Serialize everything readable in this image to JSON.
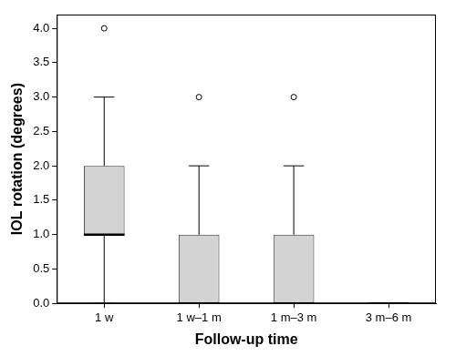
{
  "chart_data": {
    "type": "boxplot",
    "x_label": "Follow-up time",
    "y_label": "IOL rotation (degrees)",
    "categories": [
      "1 w",
      "1 w–1 m",
      "1 m–3 m",
      "3 m–6 m"
    ],
    "boxes": [
      {
        "min": 0,
        "q1": 1,
        "median": 1,
        "q3": 2,
        "max": 3,
        "outliers": [
          4
        ]
      },
      {
        "min": 0,
        "q1": 0,
        "median": 0,
        "q3": 1,
        "max": 2,
        "outliers": [
          3
        ]
      },
      {
        "min": 0,
        "q1": 0,
        "median": 0,
        "q3": 1,
        "max": 2,
        "outliers": [
          3
        ]
      },
      {
        "min": 0,
        "q1": 0,
        "median": 0,
        "q3": 0,
        "max": 0,
        "outliers": []
      }
    ],
    "color": "#d3d3d3",
    "ylim": [
      0,
      4.2
    ],
    "yticks": [
      {
        "value": 0,
        "label": "0.0"
      },
      {
        "value": 0.5,
        "label": "0.5"
      },
      {
        "value": 1,
        "label": "1.0"
      },
      {
        "value": 1.5,
        "label": "1.5"
      },
      {
        "value": 2,
        "label": "2.0"
      },
      {
        "value": 2.5,
        "label": "2.5"
      },
      {
        "value": 3,
        "label": "3.0"
      },
      {
        "value": 3.5,
        "label": "3.5"
      },
      {
        "value": 4,
        "label": "4.0"
      }
    ],
    "grid": false
  }
}
